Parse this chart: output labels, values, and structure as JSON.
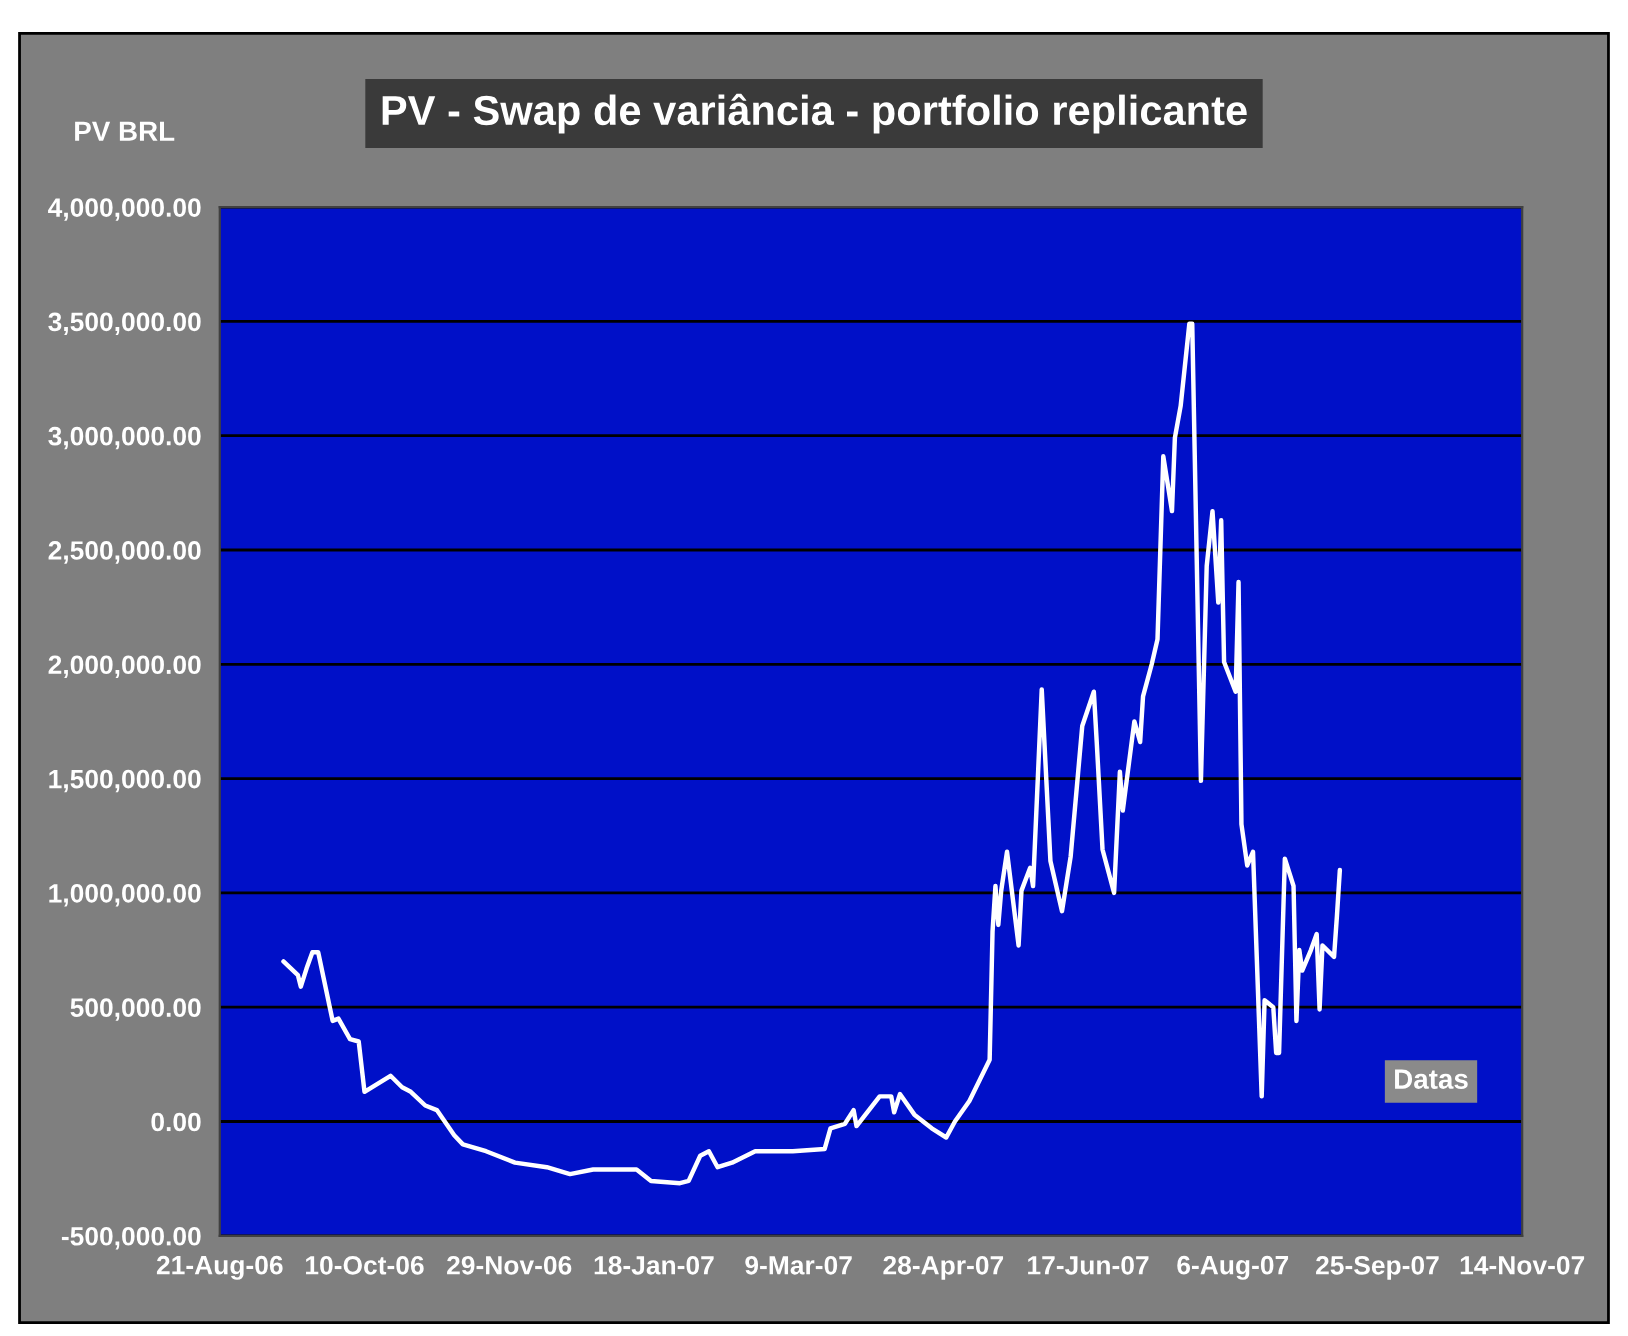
{
  "chart_data": {
    "type": "line",
    "title": "PV - Swap de variância - portfolio replicante",
    "xlabel": "Datas",
    "ylabel": "PV BRL",
    "x": [
      "2006-09-12",
      "2006-09-17",
      "2006-09-18",
      "2006-09-20",
      "2006-09-22",
      "2006-09-24",
      "2006-09-29",
      "2006-10-01",
      "2006-10-05",
      "2006-10-08",
      "2006-10-10",
      "2006-10-19",
      "2006-10-23",
      "2006-10-26",
      "2006-10-31",
      "2006-11-04",
      "2006-11-10",
      "2006-11-13",
      "2006-11-21",
      "2006-12-01",
      "2006-12-12",
      "2006-12-20",
      "2006-12-28",
      "2007-01-12",
      "2007-01-17",
      "2007-01-27",
      "2007-01-30",
      "2007-02-03",
      "2007-02-06",
      "2007-02-09",
      "2007-02-14",
      "2007-02-22",
      "2007-03-07",
      "2007-03-18",
      "2007-03-20",
      "2007-03-25",
      "2007-03-28",
      "2007-03-29",
      "2007-04-06",
      "2007-04-10",
      "2007-04-11",
      "2007-04-13",
      "2007-04-18",
      "2007-04-24",
      "2007-04-29",
      "2007-05-02",
      "2007-05-07",
      "2007-05-14",
      "2007-05-15",
      "2007-05-16",
      "2007-05-17",
      "2007-05-18",
      "2007-05-20",
      "2007-05-24",
      "2007-05-25",
      "2007-05-28",
      "2007-05-29",
      "2007-06-01",
      "2007-06-04",
      "2007-06-08",
      "2007-06-11",
      "2007-06-15",
      "2007-06-19",
      "2007-06-20",
      "2007-06-22",
      "2007-06-26",
      "2007-06-28",
      "2007-06-29",
      "2007-07-03",
      "2007-07-05",
      "2007-07-06",
      "2007-07-09",
      "2007-07-11",
      "2007-07-13",
      "2007-07-16",
      "2007-07-17",
      "2007-07-19",
      "2007-07-22",
      "2007-07-23",
      "2007-07-25",
      "2007-07-26",
      "2007-07-28",
      "2007-07-30",
      "2007-08-01",
      "2007-08-02",
      "2007-08-03",
      "2007-08-07",
      "2007-08-08",
      "2007-08-09",
      "2007-08-11",
      "2007-08-13",
      "2007-08-16",
      "2007-08-17",
      "2007-08-20",
      "2007-08-21",
      "2007-08-22",
      "2007-08-24",
      "2007-08-27",
      "2007-08-28",
      "2007-08-29",
      "2007-08-30",
      "2007-09-02",
      "2007-09-04",
      "2007-09-05",
      "2007-09-06",
      "2007-09-10",
      "2007-09-11",
      "2007-09-12"
    ],
    "series": [
      {
        "color": "#ffffff",
        "values": [
          700000,
          640000,
          590000,
          670000,
          740000,
          740000,
          440000,
          450000,
          360000,
          350000,
          130000,
          200000,
          150000,
          130000,
          70000,
          50000,
          -60000,
          -100000,
          -130000,
          -180000,
          -200000,
          -230000,
          -210000,
          -210000,
          -260000,
          -270000,
          -260000,
          -150000,
          -130000,
          -200000,
          -180000,
          -130000,
          -130000,
          -120000,
          -30000,
          -10000,
          50000,
          -20000,
          110000,
          110000,
          40000,
          120000,
          30000,
          -30000,
          -70000,
          0,
          90000,
          270000,
          830000,
          1030000,
          860000,
          1010000,
          1180000,
          770000,
          1010000,
          1110000,
          1030000,
          1890000,
          1140000,
          920000,
          1160000,
          1730000,
          1880000,
          1660000,
          1190000,
          1000000,
          1530000,
          1360000,
          1750000,
          1660000,
          1860000,
          2000000,
          2110000,
          2910000,
          2670000,
          2990000,
          3130000,
          3490000,
          3490000,
          2160000,
          1490000,
          2430000,
          2670000,
          2270000,
          2630000,
          2010000,
          1880000,
          2360000,
          1300000,
          1120000,
          1180000,
          110000,
          530000,
          500000,
          300000,
          300000,
          1150000,
          1030000,
          440000,
          750000,
          660000,
          750000,
          820000,
          490000,
          770000,
          720000,
          900000,
          1100000
        ]
      }
    ],
    "xlim": [
      "2006-08-21",
      "2007-11-14"
    ],
    "xticks": [
      {
        "value": "2006-08-21",
        "label": "21-Aug-06"
      },
      {
        "value": "2006-10-10",
        "label": "10-Oct-06"
      },
      {
        "value": "2006-11-29",
        "label": "29-Nov-06"
      },
      {
        "value": "2007-01-18",
        "label": "18-Jan-07"
      },
      {
        "value": "2007-03-09",
        "label": "9-Mar-07"
      },
      {
        "value": "2007-04-28",
        "label": "28-Apr-07"
      },
      {
        "value": "2007-06-17",
        "label": "17-Jun-07"
      },
      {
        "value": "2007-08-06",
        "label": "6-Aug-07"
      },
      {
        "value": "2007-09-25",
        "label": "25-Sep-07"
      },
      {
        "value": "2007-11-14",
        "label": "14-Nov-07"
      }
    ],
    "ylim": [
      -500000,
      4000000
    ],
    "yticks": [
      {
        "value": -500000,
        "label": "-500,000.00"
      },
      {
        "value": 0,
        "label": "0.00"
      },
      {
        "value": 500000,
        "label": "500,000.00"
      },
      {
        "value": 1000000,
        "label": "1,000,000.00"
      },
      {
        "value": 1500000,
        "label": "1,500,000.00"
      },
      {
        "value": 2000000,
        "label": "2,000,000.00"
      },
      {
        "value": 2500000,
        "label": "2,500,000.00"
      },
      {
        "value": 3000000,
        "label": "3,000,000.00"
      },
      {
        "value": 3500000,
        "label": "3,500,000.00"
      },
      {
        "value": 4000000,
        "label": "4,000,000.00"
      }
    ],
    "grid": "y",
    "legend": false,
    "marker": "none",
    "line_style": "solid"
  }
}
